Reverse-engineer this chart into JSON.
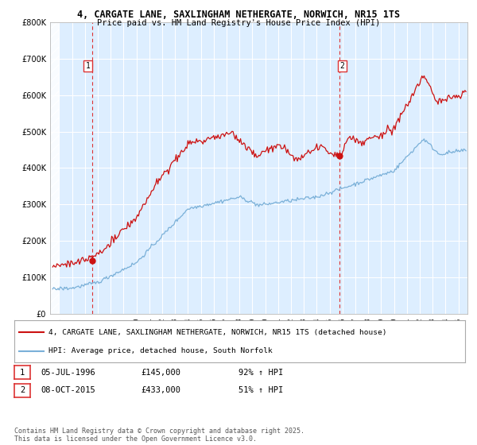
{
  "title1": "4, CARGATE LANE, SAXLINGHAM NETHERGATE, NORWICH, NR15 1TS",
  "title2": "Price paid vs. HM Land Registry's House Price Index (HPI)",
  "legend_line1": "4, CARGATE LANE, SAXLINGHAM NETHERGATE, NORWICH, NR15 1TS (detached house)",
  "legend_line2": "HPI: Average price, detached house, South Norfolk",
  "annotation1_label": "1",
  "annotation1_date": "05-JUL-1996",
  "annotation1_price": "£145,000",
  "annotation1_hpi": "92% ↑ HPI",
  "annotation2_label": "2",
  "annotation2_date": "08-OCT-2015",
  "annotation2_price": "£433,000",
  "annotation2_hpi": "51% ↑ HPI",
  "footer": "Contains HM Land Registry data © Crown copyright and database right 2025.\nThis data is licensed under the Open Government Licence v3.0.",
  "hpi_color": "#7ab0d8",
  "sale_color": "#cc1111",
  "vline_color": "#dd3333",
  "marker1_x": 1996.54,
  "marker2_x": 2015.77,
  "marker1_y": 145000,
  "marker2_y": 433000,
  "ylim": [
    0,
    800000
  ],
  "xlim_start": 1993.3,
  "xlim_end": 2025.7,
  "bg_color": "#ddeeff",
  "chart_bg": "#ddeeff"
}
